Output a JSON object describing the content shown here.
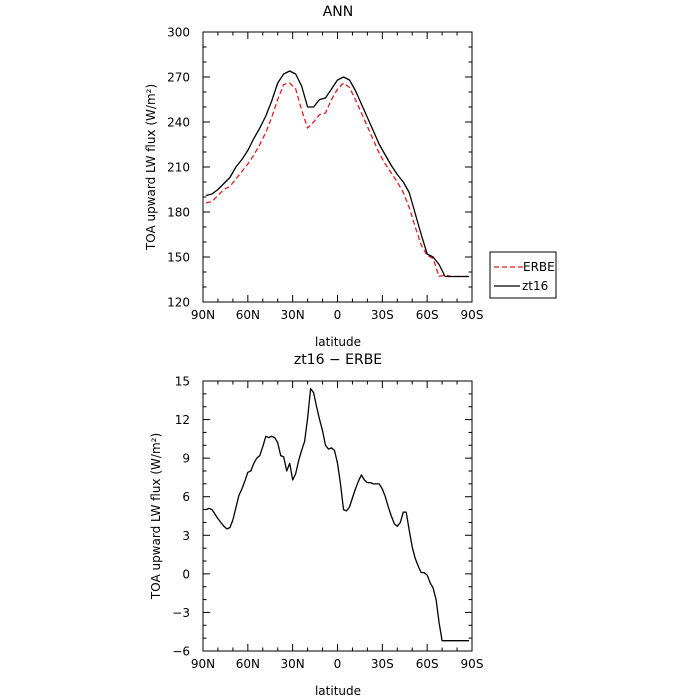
{
  "chart_data": [
    {
      "type": "line",
      "title": "ANN",
      "xlabel": "latitude",
      "ylabel": "TOA upward LW flux (W/m²)",
      "xlim": [
        90,
        -90
      ],
      "ylim": [
        120,
        300
      ],
      "xticks": [
        90,
        60,
        30,
        0,
        -30,
        -60,
        -90
      ],
      "xtick_labels": [
        "90N",
        "60N",
        "30N",
        "0",
        "30S",
        "60S",
        "90S"
      ],
      "yticks": [
        120,
        150,
        180,
        210,
        240,
        270,
        300
      ],
      "ytick_labels": [
        "120",
        "150",
        "180",
        "210",
        "240",
        "270",
        "300"
      ],
      "grid": false,
      "legend_placement": "right",
      "series": [
        {
          "name": "ERBE",
          "color": "#e8191d",
          "dash": "dashed",
          "x": [
            88,
            84,
            80,
            76,
            72,
            68,
            64,
            60,
            56,
            52,
            48,
            44,
            40,
            36,
            32,
            28,
            24,
            20,
            16,
            12,
            8,
            4,
            0,
            -4,
            -8,
            -12,
            -16,
            -20,
            -24,
            -28,
            -32,
            -36,
            -40,
            -44,
            -48,
            -52,
            -56,
            -60,
            -64,
            -68,
            -72,
            -76,
            -80,
            -84,
            -88
          ],
          "y": [
            186,
            187,
            191,
            195,
            197,
            202,
            207,
            212,
            218,
            225,
            233,
            243,
            255,
            265,
            266,
            262,
            248,
            236,
            240,
            245,
            246,
            255,
            262,
            266,
            263,
            255,
            246,
            237,
            228,
            219,
            212,
            206,
            200,
            193,
            183,
            170,
            158,
            151,
            149,
            137,
            138,
            137,
            137,
            137,
            137
          ]
        },
        {
          "name": "zt16",
          "color": "#000000",
          "dash": "solid",
          "x": [
            88,
            84,
            80,
            76,
            72,
            68,
            64,
            60,
            56,
            52,
            48,
            44,
            40,
            36,
            32,
            28,
            24,
            20,
            16,
            12,
            8,
            4,
            0,
            -4,
            -8,
            -12,
            -16,
            -20,
            -24,
            -28,
            -32,
            -36,
            -40,
            -44,
            -48,
            -52,
            -56,
            -60,
            -64,
            -68,
            -72,
            -76,
            -80,
            -84,
            -88
          ],
          "y": [
            191,
            192,
            195,
            199,
            203,
            210,
            215,
            221,
            229,
            236,
            244,
            254,
            266,
            272,
            274,
            272,
            264,
            250,
            250,
            255,
            256,
            262,
            268,
            270,
            268,
            261,
            252,
            243,
            234,
            225,
            218,
            211,
            205,
            200,
            193,
            179,
            165,
            152,
            150,
            145,
            137,
            137,
            137,
            137,
            137
          ]
        }
      ]
    },
    {
      "type": "line",
      "title": "zt16 − ERBE",
      "xlabel": "latitude",
      "ylabel": "TOA upward LW flux (W/m²)",
      "xlim": [
        90,
        -90
      ],
      "ylim": [
        -6,
        15
      ],
      "xticks": [
        90,
        60,
        30,
        0,
        -30,
        -60,
        -90
      ],
      "xtick_labels": [
        "90N",
        "60N",
        "30N",
        "0",
        "30S",
        "60S",
        "90S"
      ],
      "yticks": [
        -6,
        -3,
        0,
        3,
        6,
        9,
        12,
        15
      ],
      "ytick_labels": [
        "−6",
        "−3",
        "0",
        "3",
        "6",
        "9",
        "12",
        "15"
      ],
      "grid": false,
      "series": [
        {
          "color": "#000000",
          "dash": "solid",
          "x": [
            88,
            86,
            84,
            80,
            76,
            74,
            72,
            70,
            66,
            64,
            62,
            60,
            58,
            56,
            54,
            52,
            50,
            48,
            46,
            44,
            42,
            40,
            38,
            36,
            34,
            32,
            30,
            28,
            26,
            24,
            22,
            20,
            18,
            16,
            14,
            12,
            10,
            8,
            6,
            4,
            2,
            0,
            -2,
            -4,
            -6,
            -8,
            -10,
            -12,
            -14,
            -16,
            -18,
            -20,
            -22,
            -24,
            -26,
            -28,
            -30,
            -32,
            -34,
            -36,
            -38,
            -40,
            -42,
            -44,
            -46,
            -48,
            -50,
            -52,
            -54,
            -56,
            -58,
            -60,
            -62,
            -64,
            -66,
            -68,
            -70,
            -72,
            -74,
            -76,
            -78,
            -80,
            -82,
            -84,
            -86,
            -88
          ],
          "y": [
            5.0,
            5.1,
            5.0,
            4.3,
            3.7,
            3.5,
            3.6,
            4.2,
            6.1,
            6.6,
            7.2,
            7.9,
            8.0,
            8.6,
            9.0,
            9.2,
            9.9,
            10.7,
            10.6,
            10.7,
            10.6,
            10.2,
            9.2,
            9.1,
            8.0,
            8.6,
            7.3,
            7.8,
            8.8,
            9.6,
            10.3,
            12.1,
            14.4,
            14.1,
            13.0,
            12.0,
            11.1,
            10.0,
            9.7,
            9.8,
            9.6,
            8.6,
            7.0,
            5.0,
            4.9,
            5.2,
            5.9,
            6.6,
            7.2,
            7.7,
            7.3,
            7.1,
            7.1,
            7.0,
            7.0,
            7.0,
            6.6,
            6.0,
            5.2,
            4.5,
            3.9,
            3.7,
            4.0,
            4.8,
            4.8,
            3.4,
            2.1,
            1.2,
            0.6,
            0.1,
            0.1,
            -0.1,
            -0.7,
            -1.1,
            -2.0,
            -3.8,
            -5.2,
            -5.2,
            -5.2,
            -5.2,
            -5.2,
            -5.2,
            -5.2,
            -5.2,
            -5.2,
            -5.2
          ]
        }
      ]
    }
  ]
}
